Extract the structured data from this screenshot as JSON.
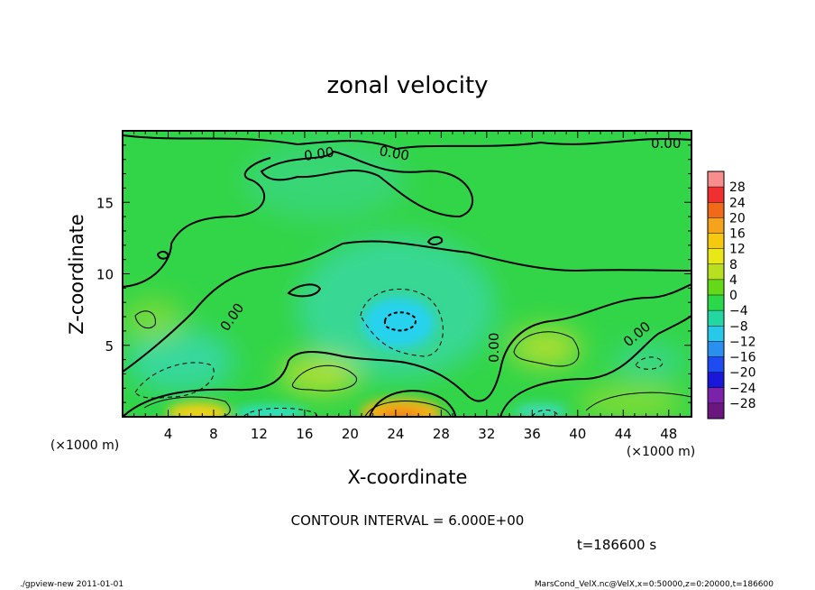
{
  "chart_data": {
    "type": "heatmap",
    "title": "zonal velocity",
    "xlabel": "X-coordinate",
    "ylabel": "Z-coordinate",
    "x_unit_label": "(×1000 m)",
    "y_unit_label": "(×1000 m)",
    "xlim": [
      0,
      50
    ],
    "ylim": [
      0,
      20
    ],
    "xticks": [
      "4",
      "8",
      "12",
      "16",
      "20",
      "24",
      "28",
      "32",
      "36",
      "40",
      "44",
      "48"
    ],
    "yticks": [
      "5",
      "10",
      "15"
    ],
    "colorbar": {
      "labels": [
        "28",
        "24",
        "20",
        "16",
        "12",
        "8",
        "4",
        "0",
        "−4",
        "−8",
        "−12",
        "−16",
        "−20",
        "−24",
        "−28"
      ],
      "colors": [
        "#f78d8d",
        "#f03030",
        "#f06a1a",
        "#f5a21c",
        "#f7c810",
        "#e8e818",
        "#b8e020",
        "#66d81a",
        "#2ad84a",
        "#22d8a0",
        "#28c8e8",
        "#2a90f0",
        "#1e4cf0",
        "#1a18d8",
        "#7a22a8",
        "#6a1880"
      ]
    },
    "contour_label": "0.00",
    "contour_interval_text": "CONTOUR INTERVAL = 6.000E+00",
    "time_text": "t=186600  s",
    "features": [
      {
        "kind": "min",
        "x": 24,
        "z": 7,
        "value": -10
      },
      {
        "kind": "min",
        "x": 9,
        "z": 3.5,
        "value": -5
      },
      {
        "kind": "max",
        "x": 25,
        "z": 0.5,
        "value": 14
      },
      {
        "kind": "max",
        "x": 6,
        "z": 0.3,
        "value": 12
      },
      {
        "kind": "max",
        "x": 18,
        "z": 2.5,
        "value": 6
      },
      {
        "kind": "max",
        "x": 37,
        "z": 4.5,
        "value": 6
      }
    ]
  },
  "footer": {
    "left": "./gpview-new   2011-01-01",
    "right": "MarsCond_VelX.nc@VelX,x=0:50000,z=0:20000,t=186600"
  }
}
